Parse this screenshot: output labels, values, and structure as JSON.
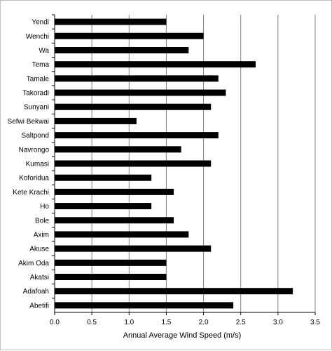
{
  "chart_data": {
    "type": "bar",
    "orientation": "horizontal",
    "categories": [
      "Yendi",
      "Wenchi",
      "Wa",
      "Tema",
      "Tamale",
      "Takoradi",
      "Sunyani",
      "Sefwi Bekwai",
      "Saltpond",
      "Navrongo",
      "Kumasi",
      "Koforidua",
      "Kete Krachi",
      "Ho",
      "Bole",
      "Axim",
      "Akuse",
      "Akim Oda",
      "Akatsi",
      "Adafoah",
      "Abetifi"
    ],
    "values": [
      1.5,
      2.0,
      1.8,
      2.7,
      2.2,
      2.3,
      2.1,
      1.1,
      2.2,
      1.7,
      2.1,
      1.3,
      1.6,
      1.3,
      1.6,
      1.8,
      2.1,
      1.5,
      1.5,
      3.2,
      2.4
    ],
    "xlabel": "Annual Average Wind Speed (m/s)",
    "ylabel": "",
    "title": "",
    "xlim": [
      0,
      3.5
    ],
    "xticks": [
      "0.0",
      "0.5",
      "1.0",
      "1.5",
      "2.0",
      "2.5",
      "3.0",
      "3.5"
    ],
    "grid": true,
    "bar_color": "#000000",
    "grid_color": "#808080"
  }
}
